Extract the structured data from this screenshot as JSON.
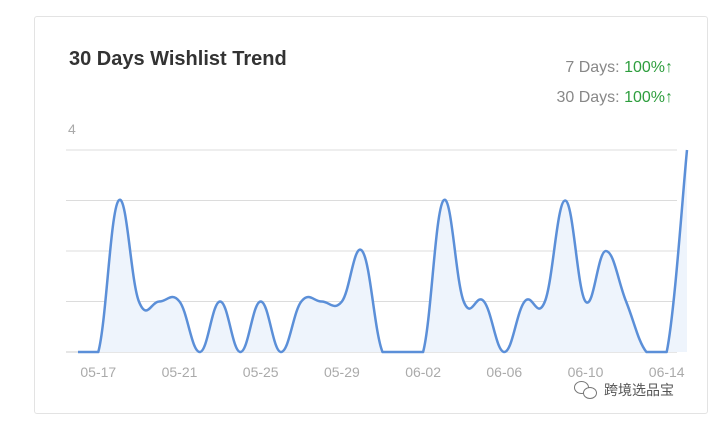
{
  "card": {
    "title": "30 Days Wishlist Trend",
    "stats": [
      {
        "label": "7 Days:",
        "value": "100%",
        "arrow": "↑"
      },
      {
        "label": "30 Days:",
        "value": "100%",
        "arrow": "↑"
      }
    ]
  },
  "watermark": {
    "text": "跨境选品宝",
    "icon": "wechat-icon"
  },
  "colors": {
    "line": "#5b8fd8",
    "fill": "#eef4fc",
    "grid": "#dcdcdc",
    "positive": "#2e9e3e",
    "tick": "#aaaaaa"
  },
  "chart_data": {
    "type": "area",
    "title": "30 Days Wishlist Trend",
    "xlabel": "",
    "ylabel": "",
    "ylim": [
      0,
      4
    ],
    "y_ticks": [
      "4"
    ],
    "grid": true,
    "x_tick_labels": [
      "05-17",
      "05-21",
      "05-25",
      "05-29",
      "06-02",
      "06-06",
      "06-10",
      "06-14"
    ],
    "x": [
      "05-16",
      "05-17",
      "05-18",
      "05-19",
      "05-20",
      "05-21",
      "05-22",
      "05-23",
      "05-24",
      "05-25",
      "05-26",
      "05-27",
      "05-28",
      "05-29",
      "05-30",
      "05-31",
      "06-01",
      "06-02",
      "06-03",
      "06-04",
      "06-05",
      "06-06",
      "06-07",
      "06-08",
      "06-09",
      "06-10",
      "06-11",
      "06-12",
      "06-13",
      "06-14",
      "06-15"
    ],
    "values": [
      0,
      0,
      3,
      1,
      1,
      1,
      0,
      1,
      0,
      1,
      0,
      1,
      1,
      1,
      2,
      0,
      0,
      0,
      3,
      1,
      1,
      0,
      1,
      1,
      3,
      1,
      2,
      1,
      0,
      0,
      4
    ]
  }
}
